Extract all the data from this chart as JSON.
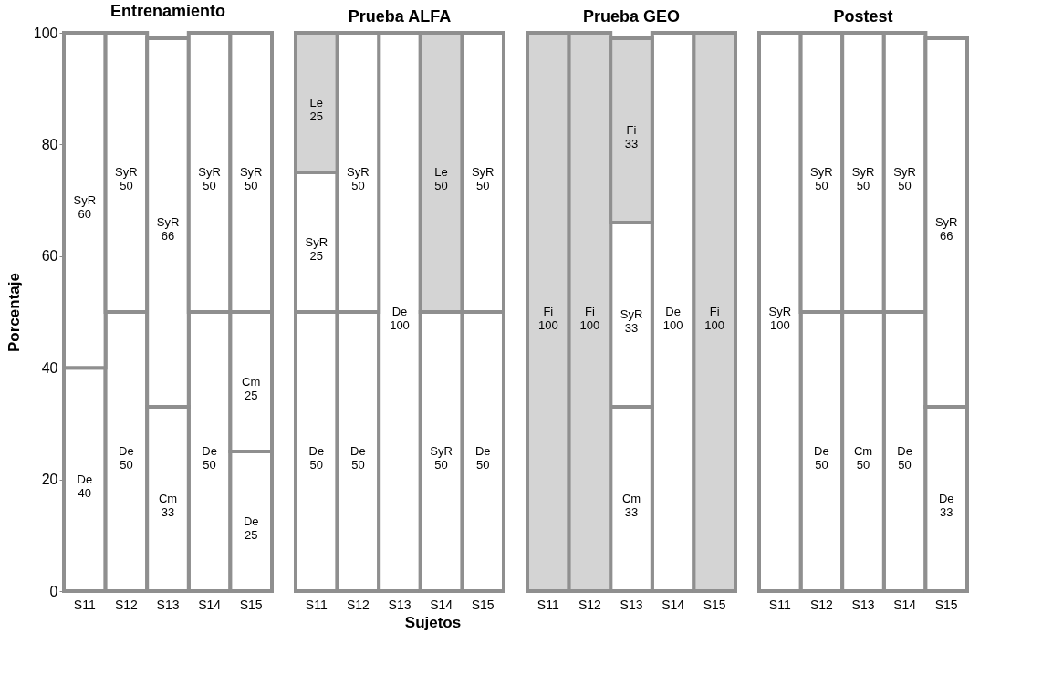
{
  "chart_data": [
    {
      "type": "bar",
      "title": "Entrenamiento",
      "ylabel": "Porcentaje",
      "categories": [
        "S11",
        "S12",
        "S13",
        "S14",
        "S15"
      ],
      "stacked": true,
      "data_labels": true,
      "ylim": [
        0,
        100
      ],
      "yticks": [
        0,
        20,
        40,
        60,
        80,
        100
      ],
      "series": [
        {
          "name": "De",
          "color": "#ffffff",
          "values": [
            40,
            50,
            null,
            50,
            25
          ]
        },
        {
          "name": "Cm",
          "color": "#ffffff",
          "values": [
            null,
            null,
            33,
            null,
            25
          ]
        },
        {
          "name": "SyR",
          "color": "#ffffff",
          "values": [
            60,
            50,
            66,
            50,
            50
          ]
        }
      ]
    },
    {
      "type": "bar",
      "title": "Prueba ALFA",
      "xlabel": "Sujetos",
      "categories": [
        "S11",
        "S12",
        "S13",
        "S14",
        "S15"
      ],
      "stacked": true,
      "data_labels": true,
      "ylim": [
        0,
        100
      ],
      "tick_labels": "x",
      "series": [
        {
          "name": "De",
          "color": "#ffffff",
          "values": [
            50,
            50,
            100,
            null,
            50
          ]
        },
        {
          "name": "SyR",
          "color": "#ffffff",
          "values": [
            25,
            50,
            null,
            50,
            50
          ]
        },
        {
          "name": "Le",
          "color": "#d4d4d4",
          "values": [
            25,
            null,
            null,
            50,
            null
          ]
        }
      ]
    },
    {
      "type": "bar",
      "title": "Prueba GEO",
      "categories": [
        "S11",
        "S12",
        "S13",
        "S14",
        "S15"
      ],
      "stacked": true,
      "data_labels": true,
      "ylim": [
        0,
        100
      ],
      "tick_labels": "x",
      "series": [
        {
          "name": "De",
          "color": "#ffffff",
          "values": [
            null,
            null,
            null,
            100,
            null
          ]
        },
        {
          "name": "Cm",
          "color": "#ffffff",
          "values": [
            null,
            null,
            33,
            null,
            null
          ]
        },
        {
          "name": "SyR",
          "color": "#ffffff",
          "values": [
            null,
            null,
            33,
            null,
            null
          ]
        },
        {
          "name": "Fi",
          "color": "#d4d4d4",
          "values": [
            100,
            100,
            33,
            null,
            100
          ]
        }
      ]
    },
    {
      "type": "bar",
      "title": "Postest",
      "categories": [
        "S11",
        "S12",
        "S13",
        "S14",
        "S15"
      ],
      "stacked": true,
      "data_labels": true,
      "ylim": [
        0,
        100
      ],
      "tick_labels": "x",
      "series": [
        {
          "name": "De",
          "color": "#ffffff",
          "values": [
            null,
            50,
            null,
            50,
            33
          ]
        },
        {
          "name": "Cm",
          "color": "#ffffff",
          "values": [
            null,
            null,
            50,
            null,
            null
          ]
        },
        {
          "name": "SyR",
          "color": "#ffffff",
          "values": [
            100,
            50,
            50,
            50,
            66
          ]
        }
      ]
    }
  ]
}
